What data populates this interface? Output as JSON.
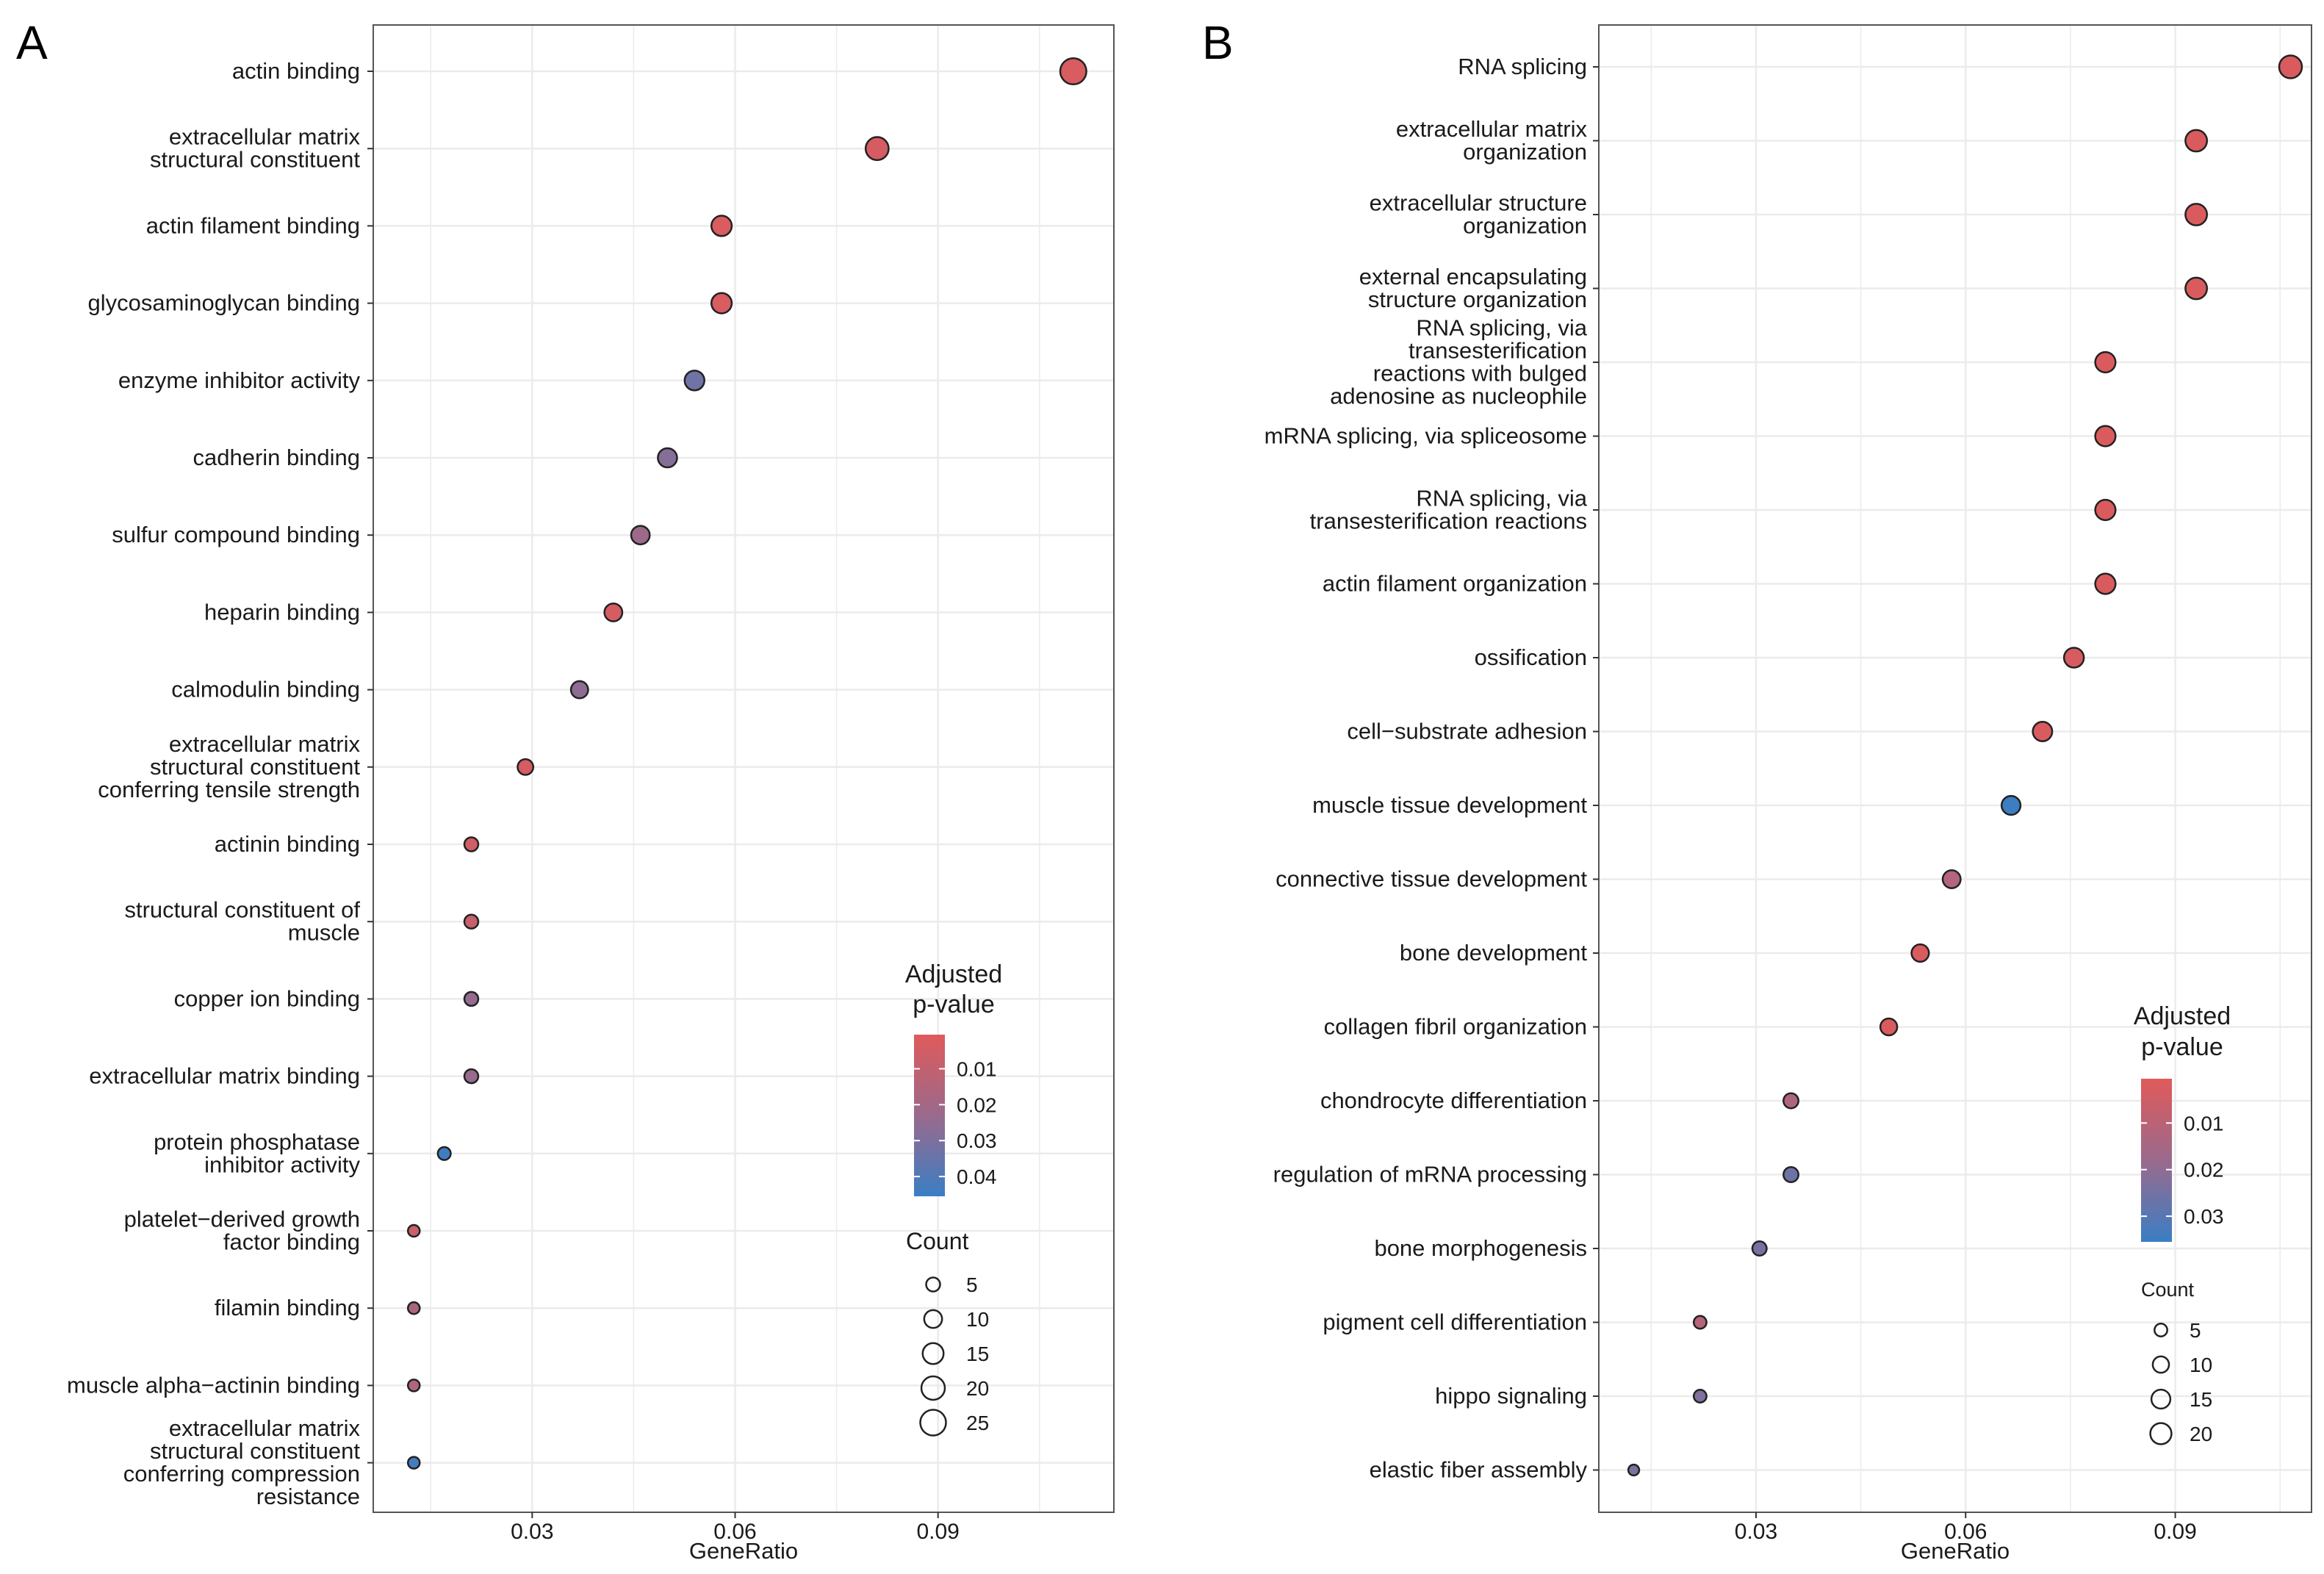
{
  "colors": {
    "low_p": "#e05a5a",
    "high_p": "#3a7ec4",
    "grid": "#ebebeb",
    "frame": "#555555",
    "dot_edge": "#222222"
  },
  "chart_data": [
    {
      "panel": "A",
      "type": "scatter",
      "xlabel": "GeneRatio",
      "xticks": [
        "0.03",
        "0.06",
        "0.09"
      ],
      "xtick_values": [
        0.03,
        0.06,
        0.09
      ],
      "xlim": [
        0.0065,
        0.116
      ],
      "categories": [
        [
          "actin binding"
        ],
        [
          "extracellular matrix",
          "structural constituent"
        ],
        [
          "actin filament binding"
        ],
        [
          "glycosaminoglycan binding"
        ],
        [
          "enzyme inhibitor activity"
        ],
        [
          "cadherin binding"
        ],
        [
          "sulfur compound binding"
        ],
        [
          "heparin binding"
        ],
        [
          "calmodulin binding"
        ],
        [
          "extracellular matrix",
          "structural constituent",
          "conferring tensile strength"
        ],
        [
          "actinin binding"
        ],
        [
          "structural constituent of",
          "muscle"
        ],
        [
          "copper ion binding"
        ],
        [
          "extracellular matrix binding"
        ],
        [
          "protein phosphatase",
          "inhibitor activity"
        ],
        [
          "platelet−derived growth",
          "factor binding"
        ],
        [
          "filamin binding"
        ],
        [
          "muscle alpha−actinin binding"
        ],
        [
          "extracellular matrix",
          "structural constituent",
          "conferring compression",
          "resistance"
        ]
      ],
      "x": [
        0.11,
        0.081,
        0.058,
        0.058,
        0.054,
        0.05,
        0.046,
        0.042,
        0.037,
        0.029,
        0.021,
        0.021,
        0.021,
        0.021,
        0.017,
        0.0125,
        0.0125,
        0.0125,
        0.0125
      ],
      "count": [
        26,
        19,
        14,
        14,
        13,
        12,
        11,
        10,
        9,
        7,
        5,
        5,
        5,
        5,
        4,
        3,
        3,
        3,
        3
      ],
      "p_adjust": [
        0.003,
        0.004,
        0.003,
        0.003,
        0.033,
        0.028,
        0.022,
        0.004,
        0.026,
        0.004,
        0.006,
        0.009,
        0.024,
        0.024,
        0.044,
        0.008,
        0.018,
        0.016,
        0.043
      ],
      "legend": {
        "color_title": [
          "Adjusted",
          "p-value"
        ],
        "color_ticks": [
          "0.01",
          "0.02",
          "0.03",
          "0.04"
        ],
        "color_tick_values": [
          0.01,
          0.02,
          0.03,
          0.04
        ],
        "color_range": [
          0.0005,
          0.0455
        ],
        "size_title": "Count",
        "size_ticks": [
          "5",
          "10",
          "15",
          "20",
          "25"
        ],
        "size_tick_values": [
          5,
          10,
          15,
          20,
          25
        ]
      }
    },
    {
      "panel": "B",
      "type": "scatter",
      "xlabel": "GeneRatio",
      "xticks": [
        "0.03",
        "0.06",
        "0.09"
      ],
      "xtick_values": [
        0.03,
        0.06,
        0.09
      ],
      "xlim": [
        0.0075,
        0.1095
      ],
      "categories": [
        [
          "RNA splicing"
        ],
        [
          "extracellular matrix",
          "organization"
        ],
        [
          "extracellular structure",
          "organization"
        ],
        [
          "external encapsulating",
          "structure organization"
        ],
        [
          "RNA splicing, via",
          "transesterification",
          "reactions with bulged",
          "adenosine as nucleophile"
        ],
        [
          "mRNA splicing, via spliceosome"
        ],
        [
          "RNA splicing, via",
          "transesterification reactions"
        ],
        [
          "actin filament organization"
        ],
        [
          "ossification"
        ],
        [
          "cell−substrate adhesion"
        ],
        [
          "muscle tissue development"
        ],
        [
          "connective tissue development"
        ],
        [
          "bone development"
        ],
        [
          "collagen fibril organization"
        ],
        [
          "chondrocyte differentiation"
        ],
        [
          "regulation of mRNA processing"
        ],
        [
          "bone morphogenesis"
        ],
        [
          "pigment cell differentiation"
        ],
        [
          "hippo signaling"
        ],
        [
          "elastic fiber assembly"
        ]
      ],
      "x": [
        0.1065,
        0.093,
        0.093,
        0.093,
        0.08,
        0.08,
        0.08,
        0.08,
        0.0755,
        0.071,
        0.0665,
        0.058,
        0.0535,
        0.049,
        0.035,
        0.035,
        0.0305,
        0.022,
        0.022,
        0.0125
      ],
      "count": [
        24,
        21,
        21,
        21,
        18,
        18,
        18,
        18,
        17,
        16,
        15,
        13,
        12,
        11,
        8,
        8,
        7,
        5,
        5,
        3
      ],
      "p_adjust": [
        0.002,
        0.002,
        0.002,
        0.002,
        0.002,
        0.002,
        0.002,
        0.002,
        0.003,
        0.002,
        0.035,
        0.012,
        0.002,
        0.002,
        0.013,
        0.026,
        0.025,
        0.011,
        0.023,
        0.024
      ],
      "legend": {
        "color_title": [
          "Adjusted",
          "p-value"
        ],
        "color_ticks": [
          "0.01",
          "0.02",
          "0.03"
        ],
        "color_tick_values": [
          0.01,
          0.02,
          0.03
        ],
        "color_range": [
          0.0005,
          0.0355
        ],
        "size_title": "Count",
        "size_ticks": [
          "5",
          "10",
          "15",
          "20"
        ],
        "size_tick_values": [
          5,
          10,
          15,
          20
        ]
      }
    }
  ]
}
